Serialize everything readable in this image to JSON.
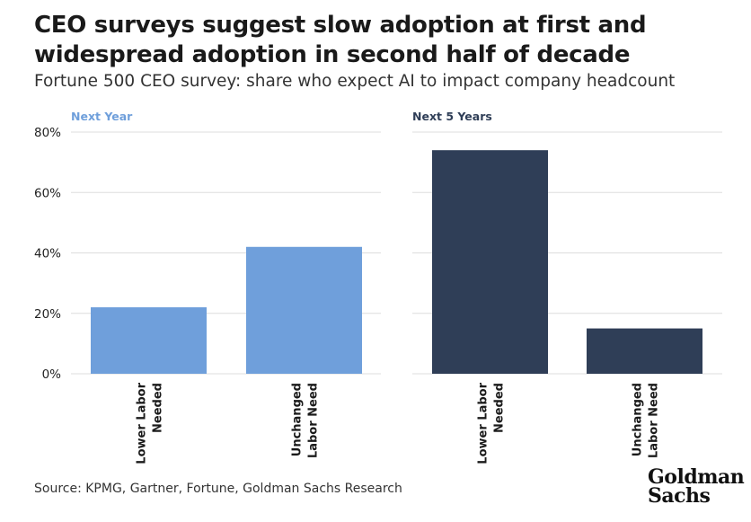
{
  "title": "CEO surveys suggest slow adoption at first and widespread adoption in second half of decade",
  "subtitle": "Fortune 500 CEO survey: share who expect AI to impact company headcount",
  "source": "Source: KPMG, Gartner, Fortune, Goldman Sachs Research",
  "logo": {
    "line1": "Goldman",
    "line2": "Sachs"
  },
  "colors": {
    "next_year": "#6f9fdb",
    "next_5_years": "#2f3e57",
    "grid": "#dddddd",
    "panel_title_1": "#6f9fdb",
    "panel_title_2": "#2f3e57"
  },
  "chart_data": [
    {
      "type": "bar",
      "panel_title": "Next Year",
      "categories": [
        "Lower Labor Needed",
        "Unchanged Labor Need"
      ],
      "values": [
        22,
        42
      ],
      "ylim": [
        0,
        80
      ],
      "yticks": [
        "0%",
        "20%",
        "40%",
        "60%",
        "80%"
      ],
      "grid": true
    },
    {
      "type": "bar",
      "panel_title": "Next 5 Years",
      "categories": [
        "Lower Labor Needed",
        "Unchanged Labor Need"
      ],
      "values": [
        74,
        15
      ],
      "ylim": [
        0,
        80
      ],
      "yticks": [],
      "grid": true
    }
  ]
}
